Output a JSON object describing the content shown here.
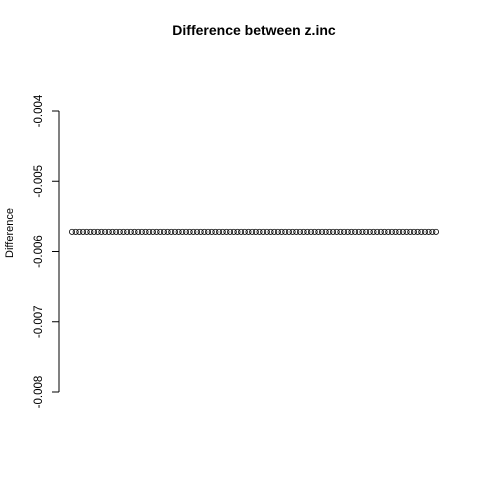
{
  "chart_data": {
    "type": "scatter",
    "title": "Difference between z.inc",
    "xlabel": "",
    "ylabel": "Difference",
    "ylim": [
      -0.008,
      -0.004
    ],
    "yticks": [
      -0.008,
      -0.007,
      -0.006,
      -0.005,
      -0.004
    ],
    "ytick_labels": [
      "-0.008",
      "-0.007",
      "-0.006",
      "-0.005",
      "-0.004"
    ],
    "x_axis_drawn": false,
    "grid": false,
    "marker": "open-circle",
    "point_color": "#000000",
    "n_points": 100,
    "constant_y": -0.00572,
    "series": [
      {
        "x_start": 1,
        "x_end": 100,
        "y": -0.00572
      }
    ]
  }
}
